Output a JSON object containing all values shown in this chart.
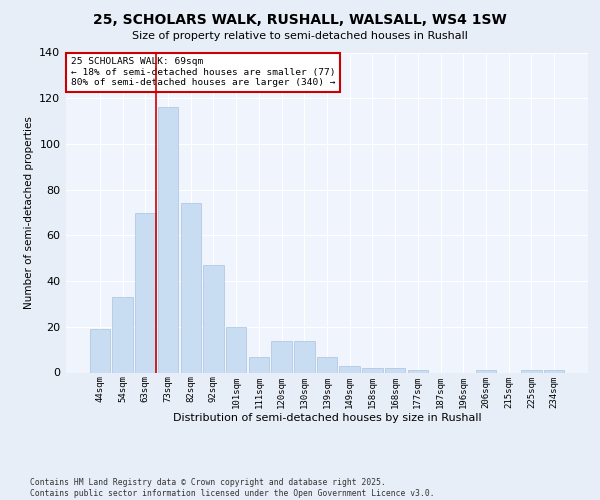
{
  "title1": "25, SCHOLARS WALK, RUSHALL, WALSALL, WS4 1SW",
  "title2": "Size of property relative to semi-detached houses in Rushall",
  "xlabel": "Distribution of semi-detached houses by size in Rushall",
  "ylabel": "Number of semi-detached properties",
  "categories": [
    "44sqm",
    "54sqm",
    "63sqm",
    "73sqm",
    "82sqm",
    "92sqm",
    "101sqm",
    "111sqm",
    "120sqm",
    "130sqm",
    "139sqm",
    "149sqm",
    "158sqm",
    "168sqm",
    "177sqm",
    "187sqm",
    "196sqm",
    "206sqm",
    "215sqm",
    "225sqm",
    "234sqm"
  ],
  "values": [
    19,
    33,
    70,
    116,
    74,
    47,
    20,
    7,
    14,
    14,
    7,
    3,
    2,
    2,
    1,
    0,
    0,
    1,
    0,
    1,
    1
  ],
  "bar_color": "#c9ddf2",
  "bar_edge_color": "#aac4e0",
  "property_bin_index": 2,
  "annotation_title": "25 SCHOLARS WALK: 69sqm",
  "annotation_line1": "← 18% of semi-detached houses are smaller (77)",
  "annotation_line2": "80% of semi-detached houses are larger (340) →",
  "vline_color": "#cc0000",
  "annotation_box_edge": "#cc0000",
  "ylim": [
    0,
    140
  ],
  "yticks": [
    0,
    20,
    40,
    60,
    80,
    100,
    120,
    140
  ],
  "footer1": "Contains HM Land Registry data © Crown copyright and database right 2025.",
  "footer2": "Contains public sector information licensed under the Open Government Licence v3.0.",
  "bg_color": "#e8eef8",
  "plot_bg_color": "#f0f4fc"
}
